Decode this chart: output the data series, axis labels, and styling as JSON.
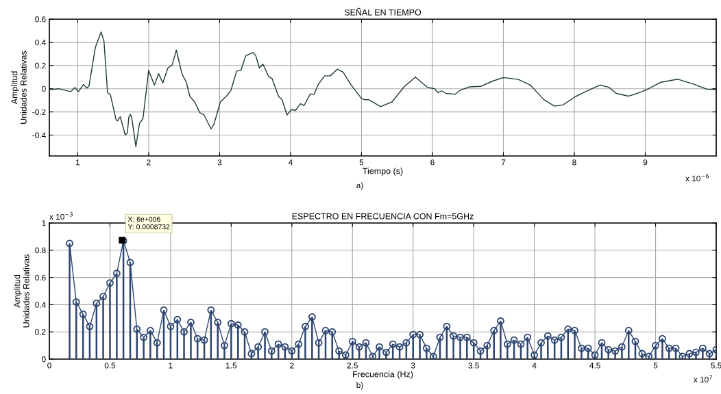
{
  "chart_data": [
    {
      "type": "line",
      "title": "SEÑAL EN TIEMPO",
      "xlabel": "Tiempo (s)",
      "ylabel": "Amplitud\nUnidades Relativas",
      "annotations": [
        "x 10$^{−6}$",
        "a)"
      ],
      "x": [
        0.6,
        0.73,
        0.9,
        0.96,
        1.01,
        1.08,
        1.13,
        1.16,
        1.25,
        1.33,
        1.37,
        1.42,
        1.46,
        1.54,
        1.56,
        1.6,
        1.67,
        1.7,
        1.72,
        1.74,
        1.76,
        1.82,
        1.87,
        1.92,
        2.0,
        2.08,
        2.14,
        2.2,
        2.27,
        2.33,
        2.39,
        2.47,
        2.53,
        2.58,
        2.65,
        2.72,
        2.78,
        2.88,
        2.92,
        3.01,
        3.11,
        3.16,
        3.24,
        3.3,
        3.37,
        3.47,
        3.51,
        3.56,
        3.61,
        3.69,
        3.74,
        3.83,
        3.88,
        3.95,
        4.01,
        4.07,
        4.14,
        4.19,
        4.28,
        4.33,
        4.39,
        4.48,
        4.56,
        4.66,
        4.74,
        4.85,
        5.0,
        5.05,
        5.1,
        5.27,
        5.43,
        5.6,
        5.76,
        5.93,
        6.03,
        6.08,
        6.13,
        6.19,
        6.32,
        6.39,
        6.52,
        6.68,
        6.85,
        7.0,
        7.21,
        7.38,
        7.57,
        7.72,
        7.84,
        8.0,
        8.16,
        8.36,
        8.49,
        8.59,
        8.76,
        8.89,
        9.02,
        9.22,
        9.46,
        9.68,
        9.87,
        10.0
      ],
      "series": [
        {
          "color": "#1e3b2c",
          "values": [
            -0.01,
            0,
            -0.025,
            0.01,
            -0.025,
            0.036,
            0.006,
            0.026,
            0.36,
            0.49,
            0.41,
            -0.034,
            -0.05,
            -0.267,
            -0.277,
            -0.242,
            -0.4,
            -0.38,
            -0.246,
            -0.222,
            -0.246,
            -0.5,
            -0.3,
            -0.257,
            0.158,
            0.03,
            0.13,
            0.05,
            0.178,
            0.204,
            0.333,
            0.127,
            0.057,
            -0.065,
            -0.115,
            -0.206,
            -0.226,
            -0.347,
            -0.307,
            -0.115,
            -0.055,
            -0.014,
            0.152,
            0.158,
            0.285,
            0.313,
            0.285,
            0.178,
            0.212,
            0.107,
            0.087,
            -0.065,
            -0.095,
            -0.226,
            -0.18,
            -0.186,
            -0.129,
            -0.145,
            -0.044,
            -0.05,
            0.036,
            0.111,
            0.111,
            0.168,
            0.143,
            0.036,
            -0.085,
            -0.095,
            -0.094,
            -0.154,
            -0.114,
            0.016,
            0.1,
            0.012,
            0,
            -0.034,
            -0.018,
            -0.04,
            -0.048,
            -0.014,
            0.016,
            0.02,
            0.066,
            0.096,
            0.08,
            0.032,
            -0.094,
            -0.15,
            -0.14,
            -0.074,
            -0.024,
            0.032,
            0.012,
            -0.04,
            -0.064,
            -0.04,
            -0.008,
            0.056,
            0.082,
            0.04,
            -0.004,
            -0.008
          ]
        }
      ],
      "xlim": [
        0.6,
        10.0
      ],
      "xticks": [
        1,
        2,
        3,
        4,
        5,
        6,
        7,
        8,
        9
      ],
      "ylim": [
        -0.58,
        0.6
      ],
      "yticks": [
        -0.4,
        -0.2,
        0,
        0.2,
        0.4,
        0.6
      ],
      "grid": true,
      "line_style": "solid",
      "marker": "none"
    },
    {
      "type": "line",
      "title": "ESPECTRO EN FRECUENCIA CON Fm=5GHz",
      "xlabel": "Frecuencia (Hz)",
      "ylabel": "Amplitud\nUnidades Relativas",
      "annotations": [
        "x 10$^{−3}$",
        "x 10$^{7}$",
        "b)",
        {
          "text": "X: 6e+006\nY: 0.0008732",
          "x": 0.6,
          "y": 0.8732
        }
      ],
      "x": [
        0.167,
        0.222,
        0.278,
        0.333,
        0.389,
        0.444,
        0.5,
        0.556,
        0.611,
        0.667,
        0.722,
        0.778,
        0.833,
        0.889,
        0.944,
        1.0,
        1.056,
        1.111,
        1.167,
        1.222,
        1.278,
        1.333,
        1.389,
        1.444,
        1.5,
        1.556,
        1.611,
        1.667,
        1.722,
        1.778,
        1.833,
        1.889,
        1.944,
        2.0,
        2.056,
        2.111,
        2.167,
        2.222,
        2.278,
        2.333,
        2.389,
        2.444,
        2.5,
        2.556,
        2.611,
        2.667,
        2.722,
        2.778,
        2.833,
        2.889,
        2.944,
        3.0,
        3.056,
        3.111,
        3.167,
        3.222,
        3.278,
        3.333,
        3.389,
        3.444,
        3.5,
        3.556,
        3.611,
        3.667,
        3.722,
        3.778,
        3.833,
        3.889,
        3.944,
        4.0,
        4.056,
        4.111,
        4.167,
        4.222,
        4.278,
        4.333,
        4.389,
        4.444,
        4.5,
        4.556,
        4.611,
        4.667,
        4.722,
        4.778,
        4.833,
        4.889,
        4.944,
        5.0,
        5.056,
        5.111,
        5.167,
        5.222,
        5.278,
        5.333,
        5.389,
        5.444,
        5.5
      ],
      "series": [
        {
          "type": "lollipop",
          "marker": "circle",
          "color": "#2b4470",
          "values": [
            0.85,
            0.42,
            0.33,
            0.24,
            0.41,
            0.46,
            0.56,
            0.63,
            0.87,
            0.71,
            0.22,
            0.16,
            0.21,
            0.12,
            0.36,
            0.24,
            0.29,
            0.2,
            0.27,
            0.15,
            0.14,
            0.36,
            0.27,
            0.1,
            0.26,
            0.25,
            0.2,
            0.04,
            0.09,
            0.2,
            0.06,
            0.11,
            0.09,
            0.06,
            0.11,
            0.24,
            0.31,
            0.12,
            0.21,
            0.2,
            0.06,
            0.03,
            0.13,
            0.09,
            0.12,
            0.02,
            0.09,
            0.05,
            0.11,
            0.09,
            0.12,
            0.18,
            0.18,
            0.08,
            0.02,
            0.16,
            0.24,
            0.17,
            0.16,
            0.16,
            0.12,
            0.06,
            0.1,
            0.21,
            0.28,
            0.11,
            0.14,
            0.11,
            0.16,
            0.03,
            0.12,
            0.17,
            0.14,
            0.16,
            0.22,
            0.21,
            0.08,
            0.08,
            0.03,
            0.12,
            0.07,
            0.06,
            0.09,
            0.21,
            0.13,
            0.04,
            0.02,
            0.1,
            0.15,
            0.08,
            0.08,
            0.02,
            0.04,
            0.05,
            0.08,
            0.04,
            0.07
          ]
        },
        {
          "type": "line",
          "marker": "none",
          "color": "#2b4470",
          "values": [
            0.85,
            0.42,
            0.33,
            0.24,
            0.41,
            0.46,
            0.56,
            0.63,
            0.87,
            0.71,
            0.22,
            0.16,
            0.21,
            0.12,
            0.36,
            0.24,
            0.29,
            0.2,
            0.27,
            0.15,
            0.14,
            0.36,
            0.27,
            0.1,
            0.26,
            0.25,
            0.2,
            0.04,
            0.09,
            0.2,
            0.06,
            0.11,
            0.09,
            0.06,
            0.11,
            0.24,
            0.31,
            0.12,
            0.21,
            0.2,
            0.06,
            0.03,
            0.13,
            0.09,
            0.12,
            0.02,
            0.09,
            0.05,
            0.11,
            0.09,
            0.12,
            0.18,
            0.18,
            0.08,
            0.02,
            0.16,
            0.24,
            0.17,
            0.16,
            0.16,
            0.12,
            0.06,
            0.1,
            0.21,
            0.28,
            0.11,
            0.14,
            0.11,
            0.16,
            0.03,
            0.12,
            0.17,
            0.14,
            0.16,
            0.22,
            0.21,
            0.08,
            0.08,
            0.03,
            0.12,
            0.07,
            0.06,
            0.09,
            0.21,
            0.13,
            0.04,
            0.02,
            0.1,
            0.15,
            0.08,
            0.08,
            0.02,
            0.04,
            0.05,
            0.08,
            0.04,
            0.07
          ]
        }
      ],
      "xlim": [
        0,
        5.5
      ],
      "xticks": [
        0,
        0.5,
        1,
        1.5,
        2,
        2.5,
        3,
        3.5,
        4,
        4.5,
        5,
        5.5
      ],
      "ylim": [
        0,
        1
      ],
      "yticks": [
        0,
        0.2,
        0.4,
        0.6,
        0.8,
        1
      ],
      "grid": true,
      "line_style": "solid"
    }
  ]
}
